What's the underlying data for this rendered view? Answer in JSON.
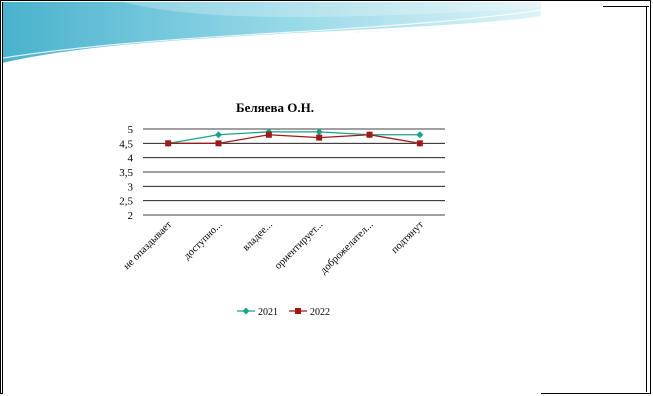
{
  "chart_data": {
    "type": "line",
    "title": "Беляева О.Н.",
    "categories": [
      "не опаздывает",
      "доступно...",
      "владее...",
      "ориентирует...",
      "доброжелател...",
      "подтянут"
    ],
    "series": [
      {
        "name": "2021",
        "values": [
          4.5,
          4.8,
          4.9,
          4.9,
          4.8,
          4.8
        ],
        "color": "#1aa38a",
        "marker": "diamond"
      },
      {
        "name": "2022",
        "values": [
          4.5,
          4.5,
          4.8,
          4.7,
          4.8,
          4.5
        ],
        "color": "#a01818",
        "marker": "square"
      }
    ],
    "yticks": [
      "5",
      "4,5",
      "4",
      "3,5",
      "3",
      "2,5",
      "2"
    ],
    "ylim": [
      2,
      5
    ],
    "grid": true,
    "legend": "bottom"
  },
  "colors": {
    "wave_dark": "#3aaec8",
    "wave_light": "#bfe6ef",
    "grid": "#000000"
  }
}
